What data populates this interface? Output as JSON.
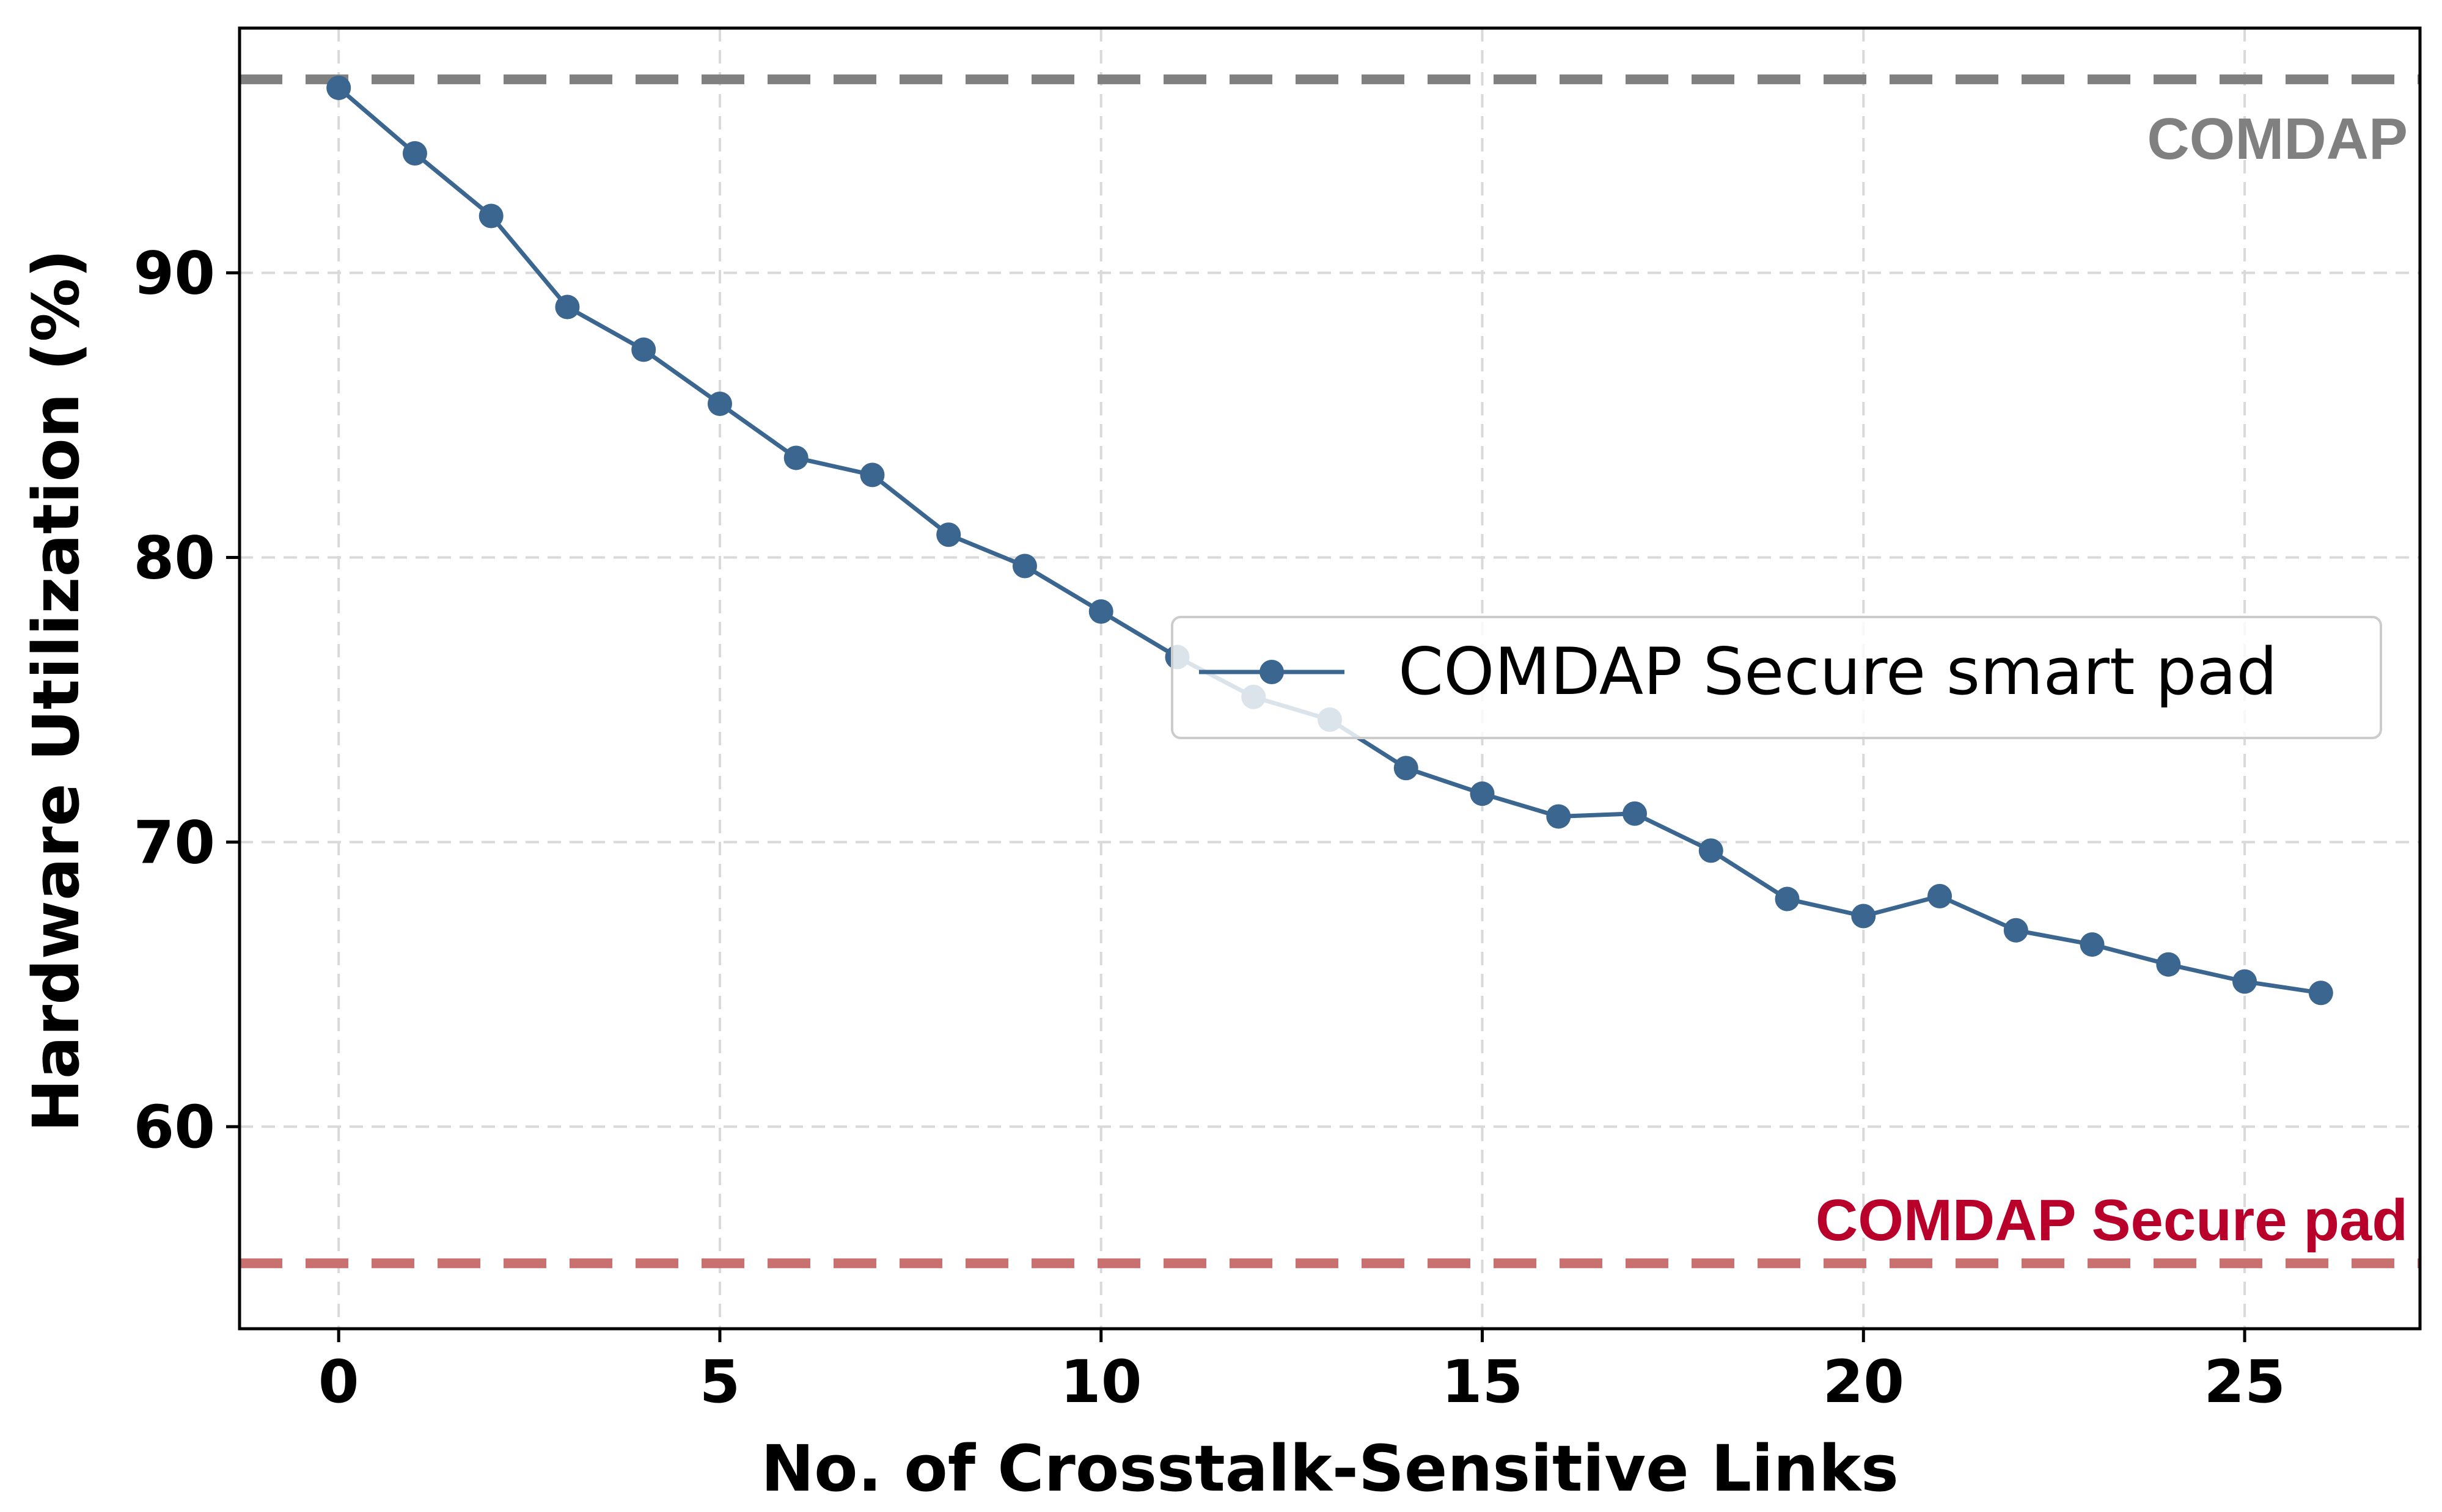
{
  "chart_data": {
    "type": "line",
    "xlabel": "No. of Crosstalk-Sensitive Links",
    "ylabel": "Hardware Utilization (%)",
    "xlim": [
      -1.3,
      27.3
    ],
    "ylim": [
      52.9,
      98.6
    ],
    "xticks": [
      0,
      5,
      10,
      15,
      20,
      25
    ],
    "yticks": [
      60,
      70,
      80,
      90
    ],
    "grid": true,
    "legend_position": "center-right",
    "series": [
      {
        "name": "COMDAP Secure smart pad",
        "color": "#3a6690",
        "x": [
          0,
          1,
          2,
          3,
          4,
          5,
          6,
          7,
          8,
          9,
          10,
          11,
          12,
          13,
          14,
          15,
          16,
          17,
          18,
          19,
          20,
          21,
          22,
          23,
          24,
          25,
          26
        ],
        "y": [
          96.5,
          94.2,
          92.0,
          88.8,
          87.3,
          85.4,
          83.5,
          82.9,
          80.8,
          79.7,
          78.1,
          76.5,
          75.1,
          74.3,
          72.6,
          71.7,
          70.9,
          71.0,
          69.7,
          68.0,
          67.4,
          68.1,
          66.9,
          66.4,
          65.7,
          65.1,
          64.7
        ]
      }
    ],
    "reference_lines": [
      {
        "label": "COMDAP",
        "y": 96.8,
        "color": "#808080",
        "label_color": "#808080"
      },
      {
        "label": "COMDAP Secure pad",
        "y": 55.2,
        "color": "#c97070",
        "label_color": "#b8002a"
      }
    ]
  }
}
